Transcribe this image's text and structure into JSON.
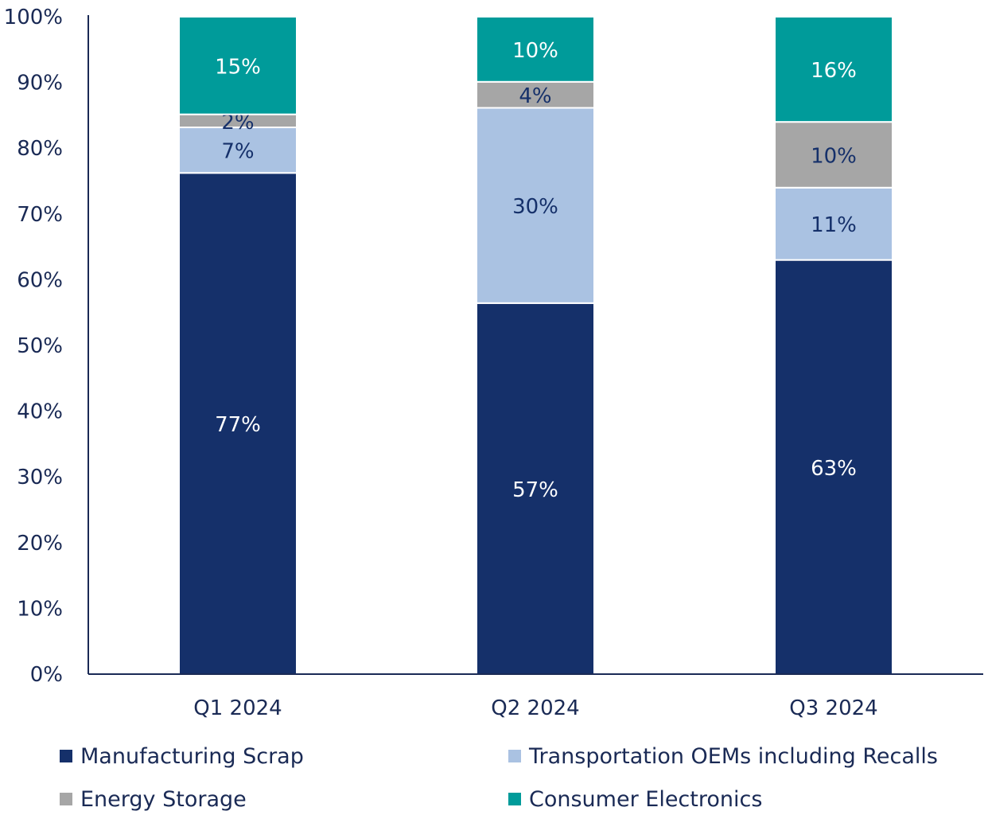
{
  "chart_data": {
    "type": "bar",
    "stacked": true,
    "categories": [
      "Q1 2024",
      "Q2 2024",
      "Q3 2024"
    ],
    "series": [
      {
        "name": "Manufacturing Scrap",
        "values": [
          77,
          57,
          63
        ],
        "color": "#15306a",
        "label_color": "#ffffff",
        "labels": [
          "77%",
          "57%",
          "63%"
        ]
      },
      {
        "name": "Transportation OEMs including Recalls",
        "values": [
          7,
          30,
          11
        ],
        "color": "#aac2e2",
        "label_color": "#15306a",
        "labels": [
          "7%",
          "30%",
          "11%"
        ]
      },
      {
        "name": "Energy Storage",
        "values": [
          2,
          4,
          10
        ],
        "color": "#a6a6a6",
        "label_color": "#15306a",
        "labels": [
          "2%",
          "4%",
          "10%"
        ]
      },
      {
        "name": "Consumer Electronics",
        "values": [
          15,
          10,
          16
        ],
        "color": "#009b9a",
        "label_color": "#ffffff",
        "labels": [
          "15%",
          "10%",
          "16%"
        ]
      }
    ],
    "yticks": [
      "0%",
      "10%",
      "20%",
      "30%",
      "40%",
      "50%",
      "60%",
      "70%",
      "80%",
      "90%",
      "100%"
    ],
    "ylim": [
      0,
      100
    ],
    "grid": false,
    "legend_position": "bottom",
    "axis_color": "#1a2a55"
  }
}
